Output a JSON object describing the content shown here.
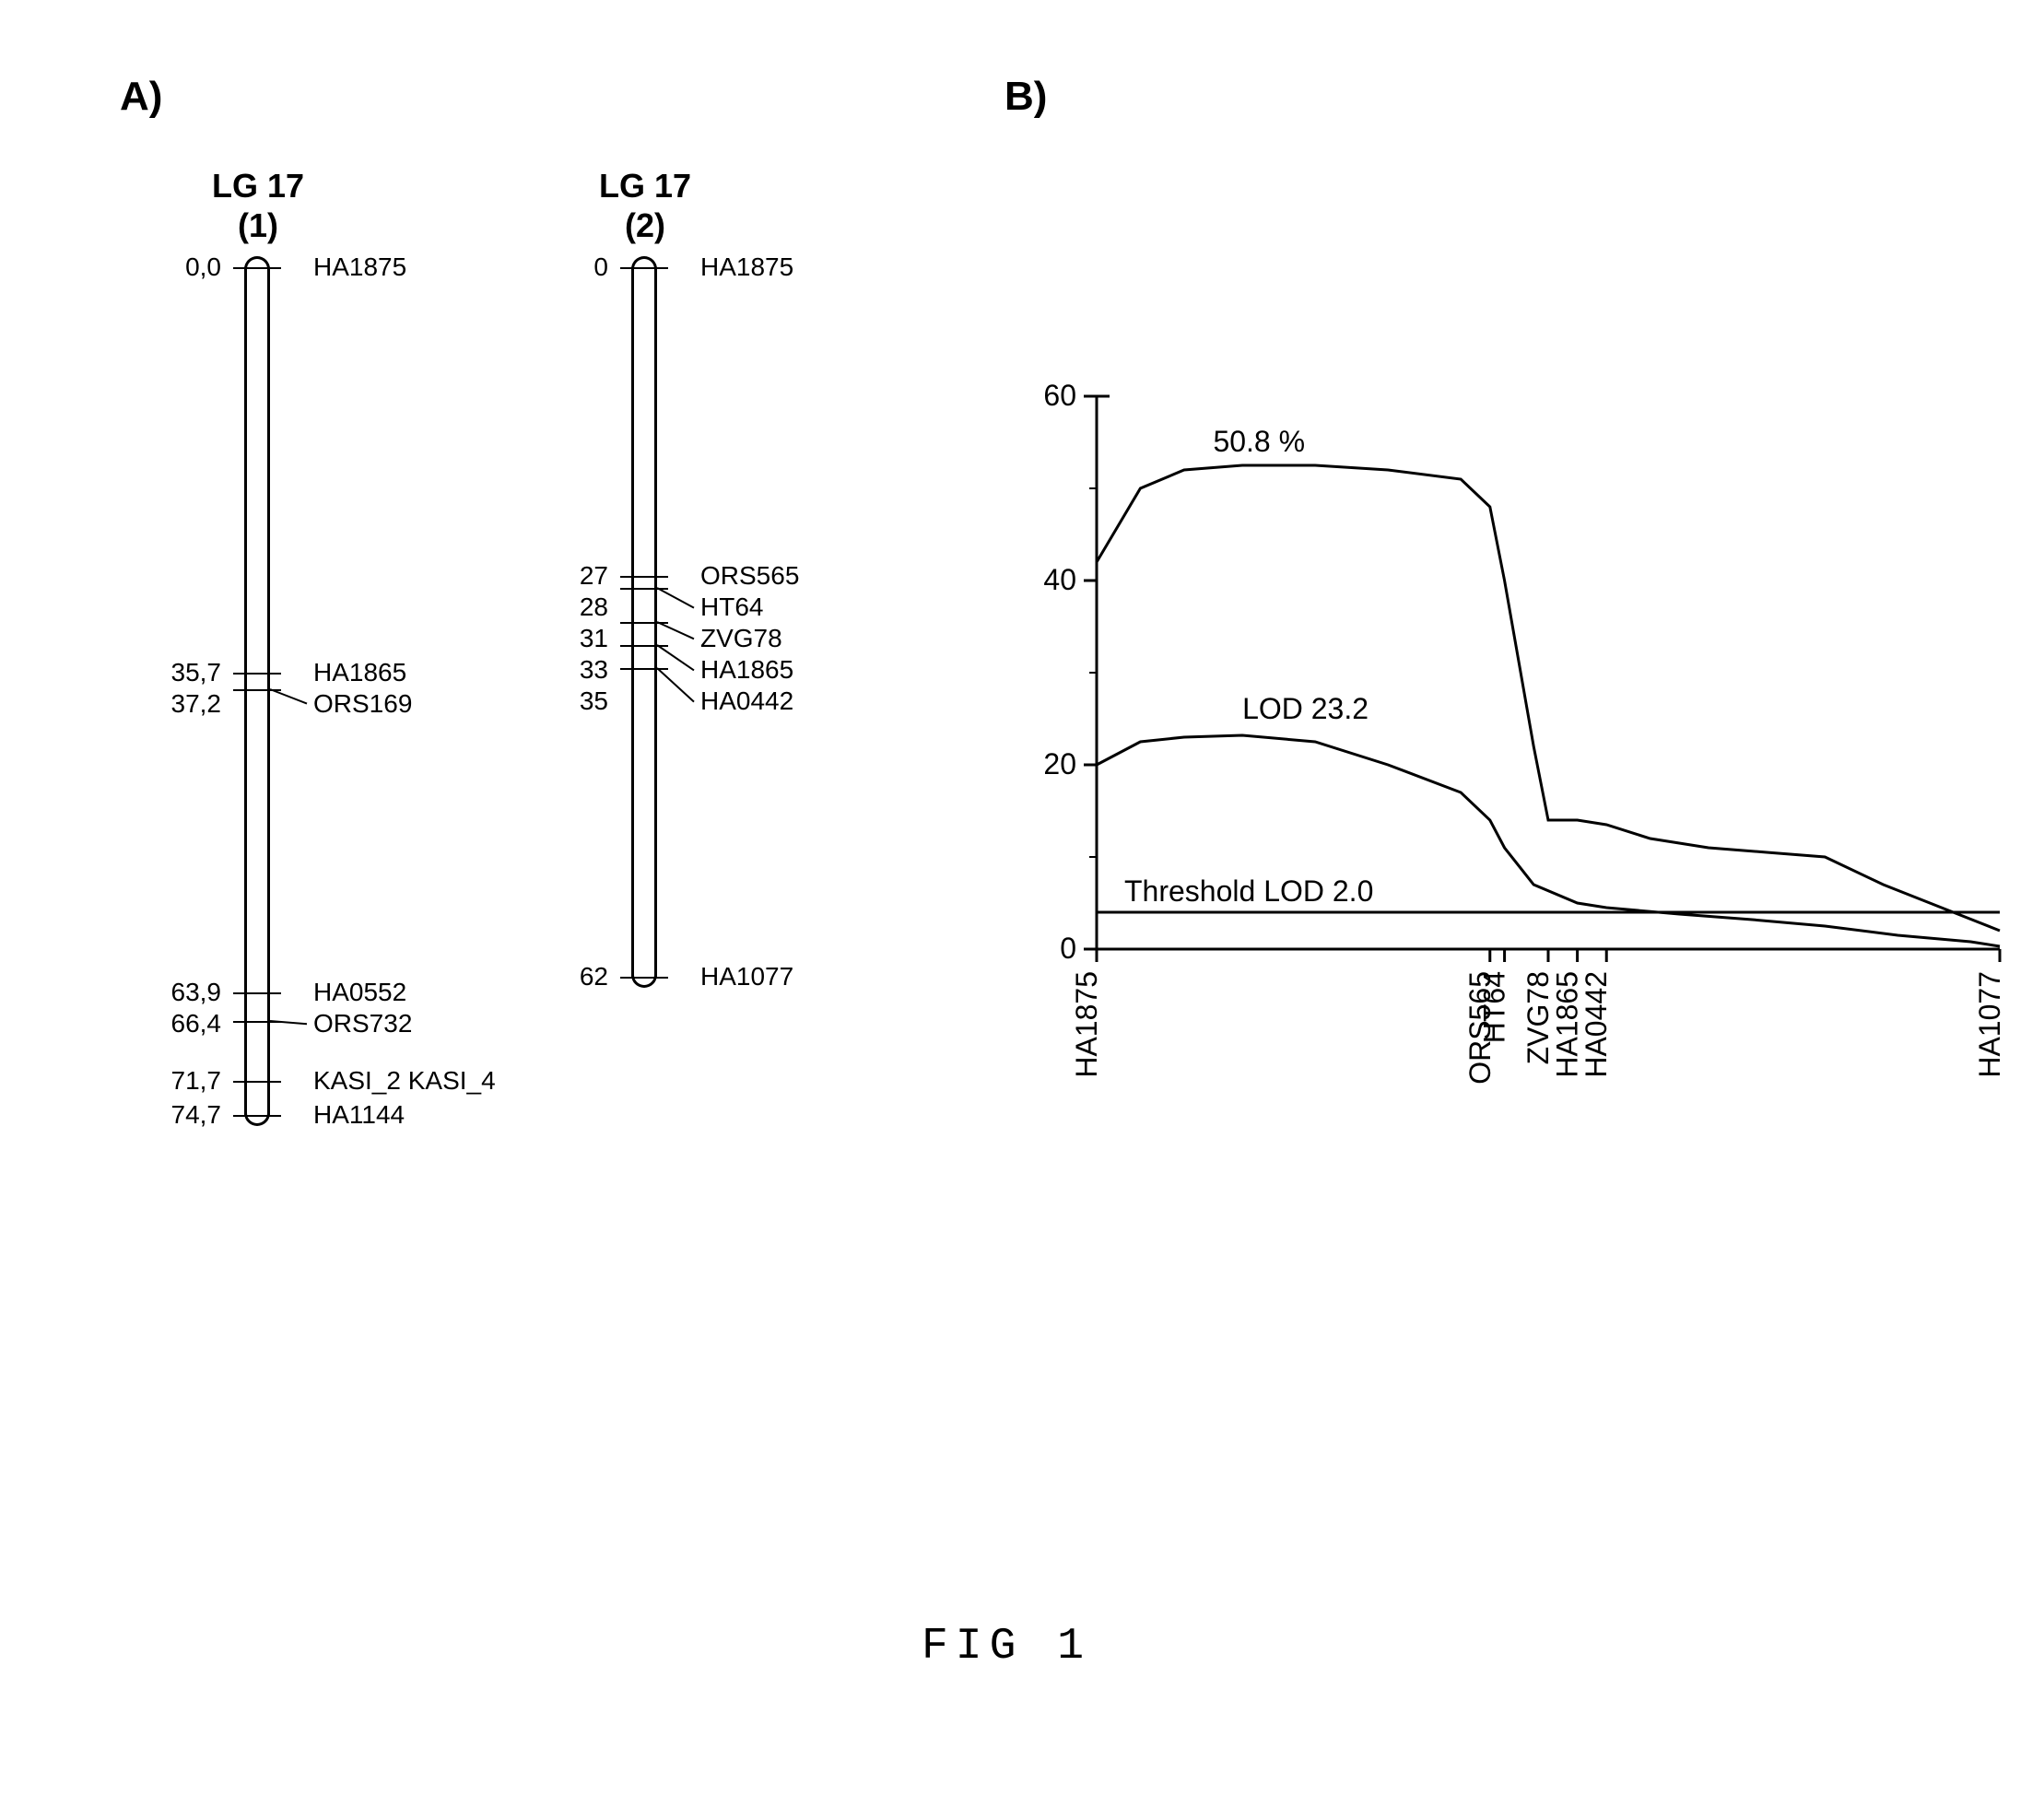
{
  "panelA": {
    "label": "A)",
    "lg1": {
      "title_line1": "LG 17",
      "title_line2": "(1)",
      "length_cm": 74.7,
      "markers": [
        {
          "position": "0,0",
          "pos_val": 0.0,
          "name": "HA1875"
        },
        {
          "position": "35,7",
          "pos_val": 35.7,
          "name": "HA1865"
        },
        {
          "position": "37,2",
          "pos_val": 37.2,
          "name": "ORS169"
        },
        {
          "position": "63,9",
          "pos_val": 63.9,
          "name": "HA0552"
        },
        {
          "position": "66,4",
          "pos_val": 66.4,
          "name": "ORS732"
        },
        {
          "position": "71,7",
          "pos_val": 71.7,
          "name": "KASI_2  KASI_4"
        },
        {
          "position": "74,7",
          "pos_val": 74.7,
          "name": "HA1144"
        }
      ]
    },
    "lg2": {
      "title_line1": "LG 17",
      "title_line2": "(2)",
      "length_cm": 62,
      "markers": [
        {
          "position": "0",
          "pos_val": 0,
          "name": "HA1875"
        },
        {
          "position": "27",
          "pos_val": 27,
          "name": "ORS565"
        },
        {
          "position": "28",
          "pos_val": 28,
          "name": "HT64"
        },
        {
          "position": "31",
          "pos_val": 31,
          "name": "ZVG78"
        },
        {
          "position": "33",
          "pos_val": 33,
          "name": "HA1865"
        },
        {
          "position": "35",
          "pos_val": 35,
          "name": "HA0442"
        },
        {
          "position": "62",
          "pos_val": 62,
          "name": "HA1077"
        }
      ]
    }
  },
  "panelB": {
    "label": "B)",
    "chart": {
      "y_axis": {
        "min": 0,
        "max": 60,
        "ticks": [
          0,
          20,
          40,
          60
        ],
        "minor_step": 10
      },
      "x_axis": {
        "total_cm": 62,
        "markers": [
          {
            "name": "HA1875",
            "pos": 0
          },
          {
            "name": "ORS565",
            "pos": 27
          },
          {
            "name": "HT64",
            "pos": 28
          },
          {
            "name": "ZVG78",
            "pos": 31
          },
          {
            "name": "HA1865",
            "pos": 33
          },
          {
            "name": "HA0442",
            "pos": 35
          },
          {
            "name": "HA1077",
            "pos": 62
          }
        ]
      },
      "threshold": {
        "value": 4,
        "label": "Threshold LOD 2.0"
      },
      "curve_labels": {
        "top": "50.8 %",
        "bottom": "LOD 23.2"
      },
      "curve_top": [
        [
          0,
          42
        ],
        [
          3,
          50
        ],
        [
          6,
          52
        ],
        [
          10,
          52.5
        ],
        [
          15,
          52.5
        ],
        [
          20,
          52
        ],
        [
          25,
          51
        ],
        [
          27,
          48
        ],
        [
          28,
          40
        ],
        [
          30,
          22
        ],
        [
          31,
          14
        ],
        [
          33,
          14
        ],
        [
          35,
          13.5
        ],
        [
          38,
          12
        ],
        [
          42,
          11
        ],
        [
          46,
          10.5
        ],
        [
          50,
          10
        ],
        [
          54,
          7
        ],
        [
          58,
          4.5
        ],
        [
          62,
          2
        ]
      ],
      "curve_bottom": [
        [
          0,
          20
        ],
        [
          3,
          22.5
        ],
        [
          6,
          23
        ],
        [
          10,
          23.2
        ],
        [
          15,
          22.5
        ],
        [
          20,
          20
        ],
        [
          25,
          17
        ],
        [
          27,
          14
        ],
        [
          28,
          11
        ],
        [
          30,
          7
        ],
        [
          33,
          5
        ],
        [
          35,
          4.5
        ],
        [
          40,
          3.8
        ],
        [
          45,
          3.2
        ],
        [
          50,
          2.5
        ],
        [
          55,
          1.5
        ],
        [
          60,
          0.8
        ],
        [
          62,
          0.3
        ]
      ],
      "colors": {
        "line": "#000000",
        "axis": "#000000",
        "bg": "#ffffff"
      },
      "line_width": 3,
      "font_size": 32
    }
  },
  "caption": "FIG 1"
}
